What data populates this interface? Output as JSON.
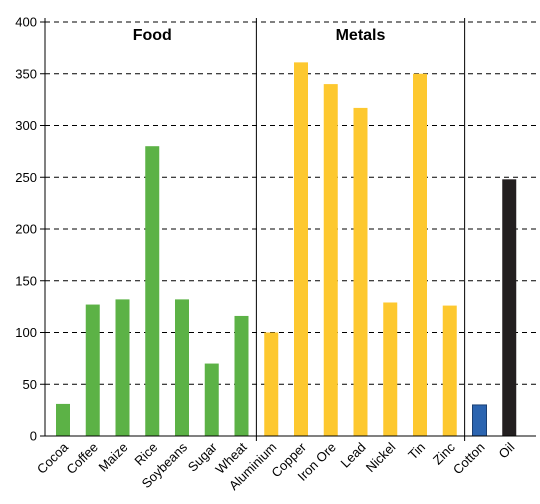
{
  "chart_data": {
    "type": "bar",
    "categories": [
      "Cocoa",
      "Coffee",
      "Maize",
      "Rice",
      "Soybeans",
      "Sugar",
      "Wheat",
      "Aluminium",
      "Copper",
      "Iron Ore",
      "Lead",
      "Nickel",
      "Tin",
      "Zinc",
      "Cotton",
      "Oil"
    ],
    "values": [
      31,
      127,
      132,
      280,
      132,
      70,
      116,
      100,
      361,
      340,
      317,
      129,
      350,
      126,
      30,
      248
    ],
    "groups": [
      {
        "label": "Food",
        "start": 0,
        "end": 6,
        "color": "#5cb246"
      },
      {
        "label": "Metals",
        "start": 7,
        "end": 13,
        "color": "#fdc82f"
      },
      {
        "label": "",
        "start": 14,
        "end": 14,
        "color": "#2b64b0"
      },
      {
        "label": "",
        "start": 15,
        "end": 15,
        "color": "#231f20"
      }
    ],
    "ylim": [
      0,
      400
    ],
    "yticks": [
      0,
      50,
      100,
      150,
      200,
      250,
      300,
      350,
      400
    ],
    "grid": true,
    "title": "",
    "xlabel": "",
    "ylabel": ""
  }
}
